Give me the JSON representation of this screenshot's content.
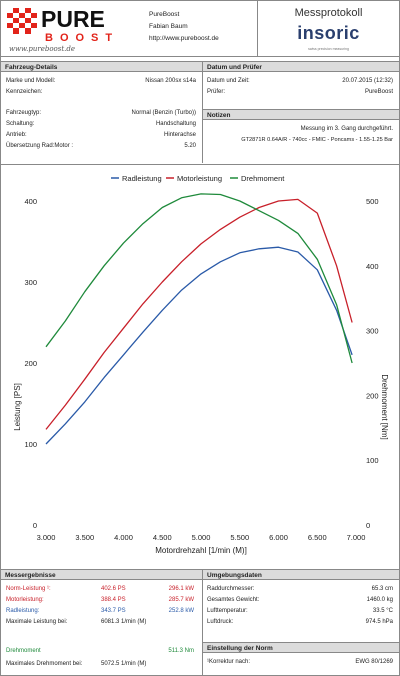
{
  "header": {
    "logo_top": "PURE",
    "logo_bottom": "BOOST",
    "logo_tagline": "www.pureboost.de",
    "company_lines": [
      "PureBoost",
      "Fabian Baum",
      "http://www.pureboost.de"
    ],
    "title": "Messprotokoll",
    "brand": "insoric",
    "brand_sub": "swiss precision measuring"
  },
  "vehicle": {
    "heading": "Fahrzeug-Details",
    "rows": [
      {
        "k": "Marke und Modell:",
        "v": "Nissan 200sx s14a"
      },
      {
        "k": "Kennzeichen:",
        "v": ""
      },
      {
        "k": "Fahrzeugtyp:",
        "v": "Normal (Benzin (Turbo))"
      },
      {
        "k": "Schaltung:",
        "v": "Handschaltung"
      },
      {
        "k": "Antrieb:",
        "v": "Hinterachse"
      },
      {
        "k": "Übersetzung Rad:Motor :",
        "v": "5.20"
      }
    ]
  },
  "datum": {
    "heading": "Datum und Prüfer",
    "rows": [
      {
        "k": "Datum und Zeit:",
        "v": "20.07.2015 (12:32)"
      },
      {
        "k": "Prüfer:",
        "v": "PureBoost"
      }
    ]
  },
  "notizen": {
    "heading": "Notizen",
    "lines": [
      "Messung im 3. Gang durchgeführt.",
      "GT2871R 0.64A/R - 740cc - FMIC -  Poncams - 1.55-1.25 Bar"
    ]
  },
  "colors": {
    "rad": "#2a5aa8",
    "motor": "#c8202a",
    "dreh": "#1f8a3b"
  },
  "chart_data": {
    "type": "line",
    "xlabel": "Motordrehzahl [1/min (M)]",
    "ylabel": "Leistung [PS]",
    "y2label": "Drehmoment [Nm]",
    "xlim": [
      3000,
      7000
    ],
    "ylim": [
      0,
      400
    ],
    "y2lim": [
      0,
      500
    ],
    "x_ticks": [
      "3.000",
      "3.500",
      "4.000",
      "4.500",
      "5.000",
      "5.500",
      "6.000",
      "6.500",
      "7.000"
    ],
    "y_ticks": [
      0,
      100,
      200,
      300,
      400
    ],
    "y2_ticks": [
      0,
      100,
      200,
      300,
      400,
      500
    ],
    "legend": [
      "Radleistung",
      "Motorleistung",
      "Drehmoment"
    ],
    "legend_position": "top-center",
    "series": [
      {
        "name": "Radleistung",
        "axis": "left",
        "x": [
          3000,
          3250,
          3500,
          3750,
          4000,
          4250,
          4500,
          4750,
          5000,
          5250,
          5500,
          5750,
          6000,
          6250,
          6500,
          6750,
          6950
        ],
        "y": [
          100,
          125,
          152,
          182,
          210,
          238,
          265,
          290,
          310,
          325,
          336,
          341,
          343,
          337,
          315,
          265,
          210
        ]
      },
      {
        "name": "Motorleistung",
        "axis": "left",
        "x": [
          3000,
          3250,
          3500,
          3750,
          4000,
          4250,
          4500,
          4750,
          5000,
          5250,
          5500,
          5750,
          6000,
          6250,
          6500,
          6750,
          6950
        ],
        "y": [
          118,
          148,
          180,
          213,
          243,
          273,
          300,
          325,
          347,
          365,
          380,
          392,
          400,
          402,
          385,
          320,
          250
        ]
      },
      {
        "name": "Drehmoment",
        "axis": "right",
        "x": [
          3000,
          3250,
          3500,
          3750,
          4000,
          4250,
          4500,
          4750,
          5000,
          5250,
          5500,
          5750,
          6000,
          6250,
          6500,
          6750,
          6950
        ],
        "y": [
          275,
          315,
          360,
          400,
          435,
          465,
          490,
          505,
          511,
          510,
          500,
          485,
          470,
          450,
          410,
          340,
          250
        ]
      }
    ]
  },
  "results": {
    "heading": "Messergebnisse",
    "norm_label": "Norm-Leistung ¹:",
    "norm_ps": "402.6 PS",
    "norm_kw": "296.1 kW",
    "motor_label": "Motorleistung:",
    "motor_ps": "388.4 PS",
    "motor_kw": "285.7 kW",
    "rad_label": "Radleistung:",
    "rad_ps": "343.7 PS",
    "rad_kw": "252.8 kW",
    "max_label": "Maximale Leistung bei:",
    "max_val": "6081.3 1/min (M)",
    "dreh_label": "Drehmoment",
    "dreh_val": "511.3 Nm",
    "maxdreh_label": "Maximales Drehmoment bei:",
    "maxdreh_val": "5072.5 1/min (M)"
  },
  "umgebung": {
    "heading": "Umgebungsdaten",
    "rows": [
      {
        "k": "Raddurchmesser:",
        "v": "65.3 cm"
      },
      {
        "k": "Gesamtes Gewicht:",
        "v": "1460.0 kg"
      },
      {
        "k": "Lufttemperatur:",
        "v": "33.5 °C"
      },
      {
        "k": "Luftdruck:",
        "v": "974.5 hPa"
      }
    ]
  },
  "norm": {
    "heading": "Einstellung der Norm",
    "k": "¹Korrektur nach:",
    "v": "EWG 80/1269"
  }
}
